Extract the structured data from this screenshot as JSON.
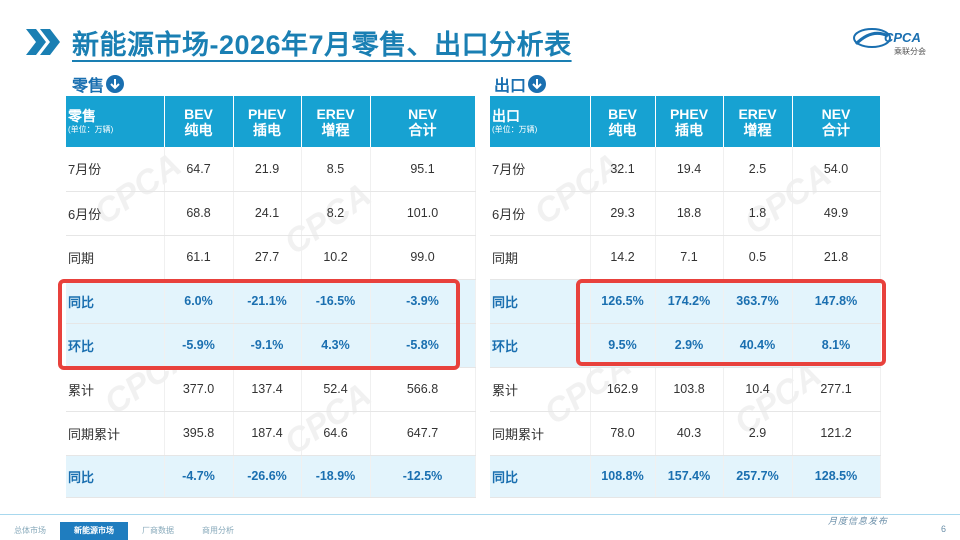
{
  "header": {
    "title": "新能源市场-2026年7月零售、出口分析表",
    "logo_text": "CPCA",
    "logo_subtext": "乘联分会"
  },
  "watermark": "CPCA",
  "retail": {
    "section_label": "零售",
    "columns": [
      {
        "line1": "零售",
        "line2": "(单位：万辆)"
      },
      {
        "line1": "BEV",
        "line2": "纯电"
      },
      {
        "line1": "PHEV",
        "line2": "插电"
      },
      {
        "line1": "EREV",
        "line2": "增程"
      },
      {
        "line1": "NEV",
        "line2": "合计"
      }
    ],
    "rows": [
      {
        "label": "7月份",
        "values": [
          "64.7",
          "21.9",
          "8.5",
          "95.1"
        ]
      },
      {
        "label": "6月份",
        "values": [
          "68.8",
          "24.1",
          "8.2",
          "101.0"
        ]
      },
      {
        "label": "同期",
        "values": [
          "61.1",
          "27.7",
          "10.2",
          "99.0"
        ]
      },
      {
        "label": "同比",
        "values": [
          "6.0%",
          "-21.1%",
          "-16.5%",
          "-3.9%"
        ]
      },
      {
        "label": "环比",
        "values": [
          "-5.9%",
          "-9.1%",
          "4.3%",
          "-5.8%"
        ]
      },
      {
        "label": "累计",
        "values": [
          "377.0",
          "137.4",
          "52.4",
          "566.8"
        ]
      },
      {
        "label": "同期累计",
        "values": [
          "395.8",
          "187.4",
          "64.6",
          "647.7"
        ]
      },
      {
        "label": "同比",
        "values": [
          "-4.7%",
          "-26.6%",
          "-18.9%",
          "-12.5%"
        ]
      }
    ]
  },
  "export": {
    "section_label": "出口",
    "columns": [
      {
        "line1": "出口",
        "line2": "(单位：万辆)"
      },
      {
        "line1": "BEV",
        "line2": "纯电"
      },
      {
        "line1": "PHEV",
        "line2": "插电"
      },
      {
        "line1": "EREV",
        "line2": "增程"
      },
      {
        "line1": "NEV",
        "line2": "合计"
      }
    ],
    "rows": [
      {
        "label": "7月份",
        "values": [
          "32.1",
          "19.4",
          "2.5",
          "54.0"
        ]
      },
      {
        "label": "6月份",
        "values": [
          "29.3",
          "18.8",
          "1.8",
          "49.9"
        ]
      },
      {
        "label": "同期",
        "values": [
          "14.2",
          "7.1",
          "0.5",
          "21.8"
        ]
      },
      {
        "label": "同比",
        "values": [
          "126.5%",
          "174.2%",
          "363.7%",
          "147.8%"
        ]
      },
      {
        "label": "环比",
        "values": [
          "9.5%",
          "2.9%",
          "40.4%",
          "8.1%"
        ]
      },
      {
        "label": "累计",
        "values": [
          "162.9",
          "103.8",
          "10.4",
          "277.1"
        ]
      },
      {
        "label": "同期累计",
        "values": [
          "78.0",
          "40.3",
          "2.9",
          "121.2"
        ]
      },
      {
        "label": "同比",
        "values": [
          "108.8%",
          "157.4%",
          "257.7%",
          "128.5%"
        ]
      }
    ]
  },
  "footer": {
    "tabs": [
      "总体市场",
      "新能源市场",
      "厂商数据",
      "商用分析"
    ],
    "active_tab_index": 1,
    "right_text": "月度信息发布",
    "page_number": "6"
  },
  "colors": {
    "header_bg": "#17a2d2",
    "highlight_row_bg": "#e3f4fc",
    "highlight_text": "#1a6fb0",
    "red_box": "#e8413c",
    "title": "#1a7fb3"
  }
}
